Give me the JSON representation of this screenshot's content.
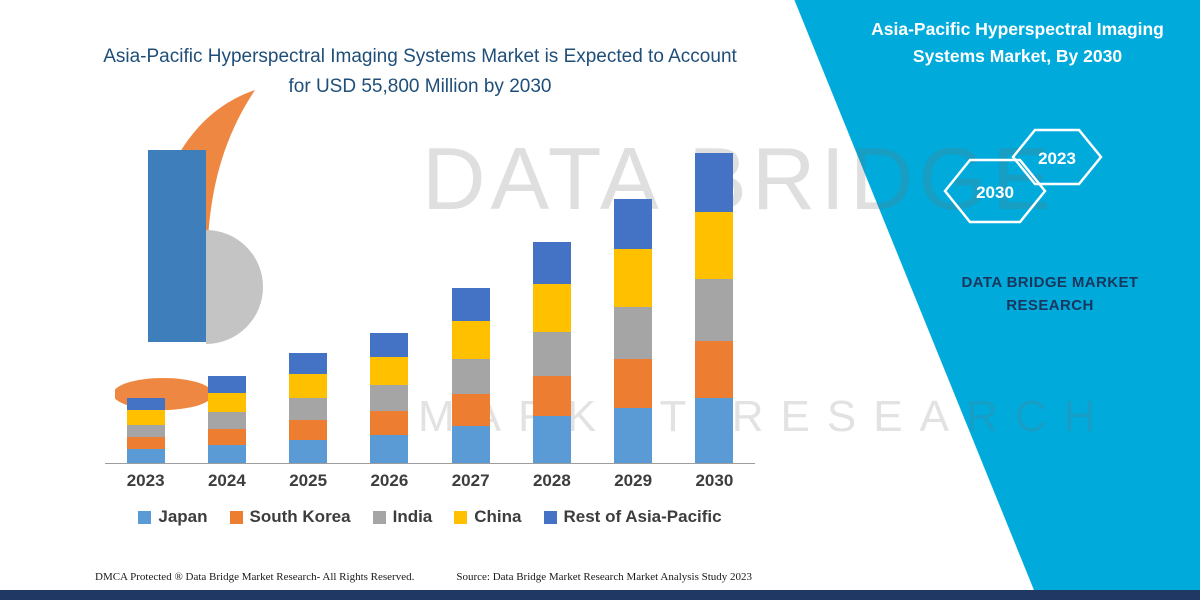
{
  "header": {
    "title_line1": "Asia-Pacific Hyperspectral Imaging Systems Market is Expected to Account",
    "title_line2": "for USD 55,800 Million by 2030"
  },
  "side_panel": {
    "heading_line1": "Asia-Pacific Hyperspectral Imaging",
    "heading_line2": "Systems Market, By 2030",
    "hexagons": [
      {
        "label": "2030"
      },
      {
        "label": "2023"
      }
    ],
    "brand_line1": "DATA BRIDGE MARKET",
    "brand_line2": "RESEARCH",
    "bg_color": "#00ABDC"
  },
  "watermark": {
    "line1": "DATA BRIDGE",
    "line2": "MARKET RESEARCH"
  },
  "footer": {
    "dmca": "DMCA Protected ® Data Bridge Market Research-  All Rights Reserved.",
    "source": "Source: Data Bridge Market Research  Market Analysis Study 2023"
  },
  "colors": {
    "accent_cyan": "#00ABDC",
    "navy": "#1F3864",
    "title_blue": "#1F4E79"
  },
  "chart_data": {
    "type": "bar",
    "stacked": true,
    "title": "Asia-Pacific Hyperspectral Imaging Systems Market is Expected to Account for USD 55,800 Million by 2030",
    "unit": "USD Million",
    "categories": [
      "2023",
      "2024",
      "2025",
      "2026",
      "2027",
      "2028",
      "2029",
      "2030"
    ],
    "series": [
      {
        "name": "Japan",
        "color": "#5B9BD5",
        "values": [
          2500,
          3300,
          4200,
          5000,
          6700,
          8400,
          10000,
          11800
        ]
      },
      {
        "name": "South Korea",
        "color": "#ED7D31",
        "values": [
          2100,
          2800,
          3600,
          4300,
          5800,
          7300,
          8700,
          10200
        ]
      },
      {
        "name": "India",
        "color": "#A5A5A5",
        "values": [
          2300,
          3100,
          4000,
          4700,
          6300,
          8000,
          9500,
          11200
        ]
      },
      {
        "name": "China",
        "color": "#FFC000",
        "values": [
          2600,
          3400,
          4300,
          5100,
          6800,
          8600,
          10300,
          12100
        ]
      },
      {
        "name": "Rest of Asia-Pacific",
        "color": "#4472C4",
        "values": [
          2200,
          3000,
          3800,
          4400,
          6000,
          7500,
          9000,
          10500
        ]
      }
    ],
    "totals": [
      11700,
      15600,
      19900,
      23500,
      31600,
      39800,
      47500,
      55800
    ],
    "ylim": [
      0,
      60000
    ],
    "xlabel": "",
    "ylabel": "",
    "grid": false,
    "legend_position": "bottom"
  }
}
